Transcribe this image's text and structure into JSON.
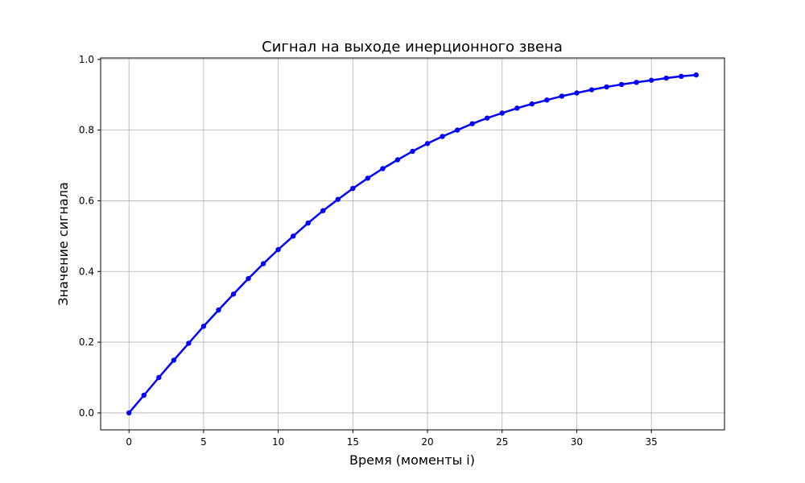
{
  "chart_data": {
    "type": "line",
    "title": "Сигнал на выходе инерционного звена",
    "xlabel": "Время (моменты i)",
    "ylabel": "Значение сигнала",
    "xlim": [
      -1.9,
      39.9
    ],
    "ylim": [
      -0.048,
      1.004
    ],
    "xticks": [
      0,
      5,
      10,
      15,
      20,
      25,
      30,
      35
    ],
    "xtick_labels": [
      "0",
      "5",
      "10",
      "15",
      "20",
      "25",
      "30",
      "35"
    ],
    "yticks": [
      0.0,
      0.2,
      0.4,
      0.6,
      0.8,
      1.0
    ],
    "ytick_labels": [
      "0.0",
      "0.2",
      "0.4",
      "0.6",
      "0.8",
      "1.0"
    ],
    "grid": true,
    "color": "#0000ff",
    "marker": "circle",
    "x": [
      0,
      1,
      2,
      3,
      4,
      5,
      6,
      7,
      8,
      9,
      10,
      11,
      12,
      13,
      14,
      15,
      16,
      17,
      18,
      19,
      20,
      21,
      22,
      23,
      24,
      25,
      26,
      27,
      28,
      29,
      30,
      31,
      32,
      33,
      34,
      35,
      36,
      37,
      38
    ],
    "y": [
      0.0,
      0.05,
      0.1,
      0.149,
      0.197,
      0.245,
      0.291,
      0.336,
      0.38,
      0.422,
      0.462,
      0.5,
      0.537,
      0.572,
      0.604,
      0.635,
      0.664,
      0.691,
      0.716,
      0.74,
      0.762,
      0.782,
      0.8,
      0.818,
      0.834,
      0.848,
      0.862,
      0.874,
      0.885,
      0.896,
      0.905,
      0.914,
      0.922,
      0.929,
      0.935,
      0.941,
      0.947,
      0.952,
      0.956
    ]
  }
}
